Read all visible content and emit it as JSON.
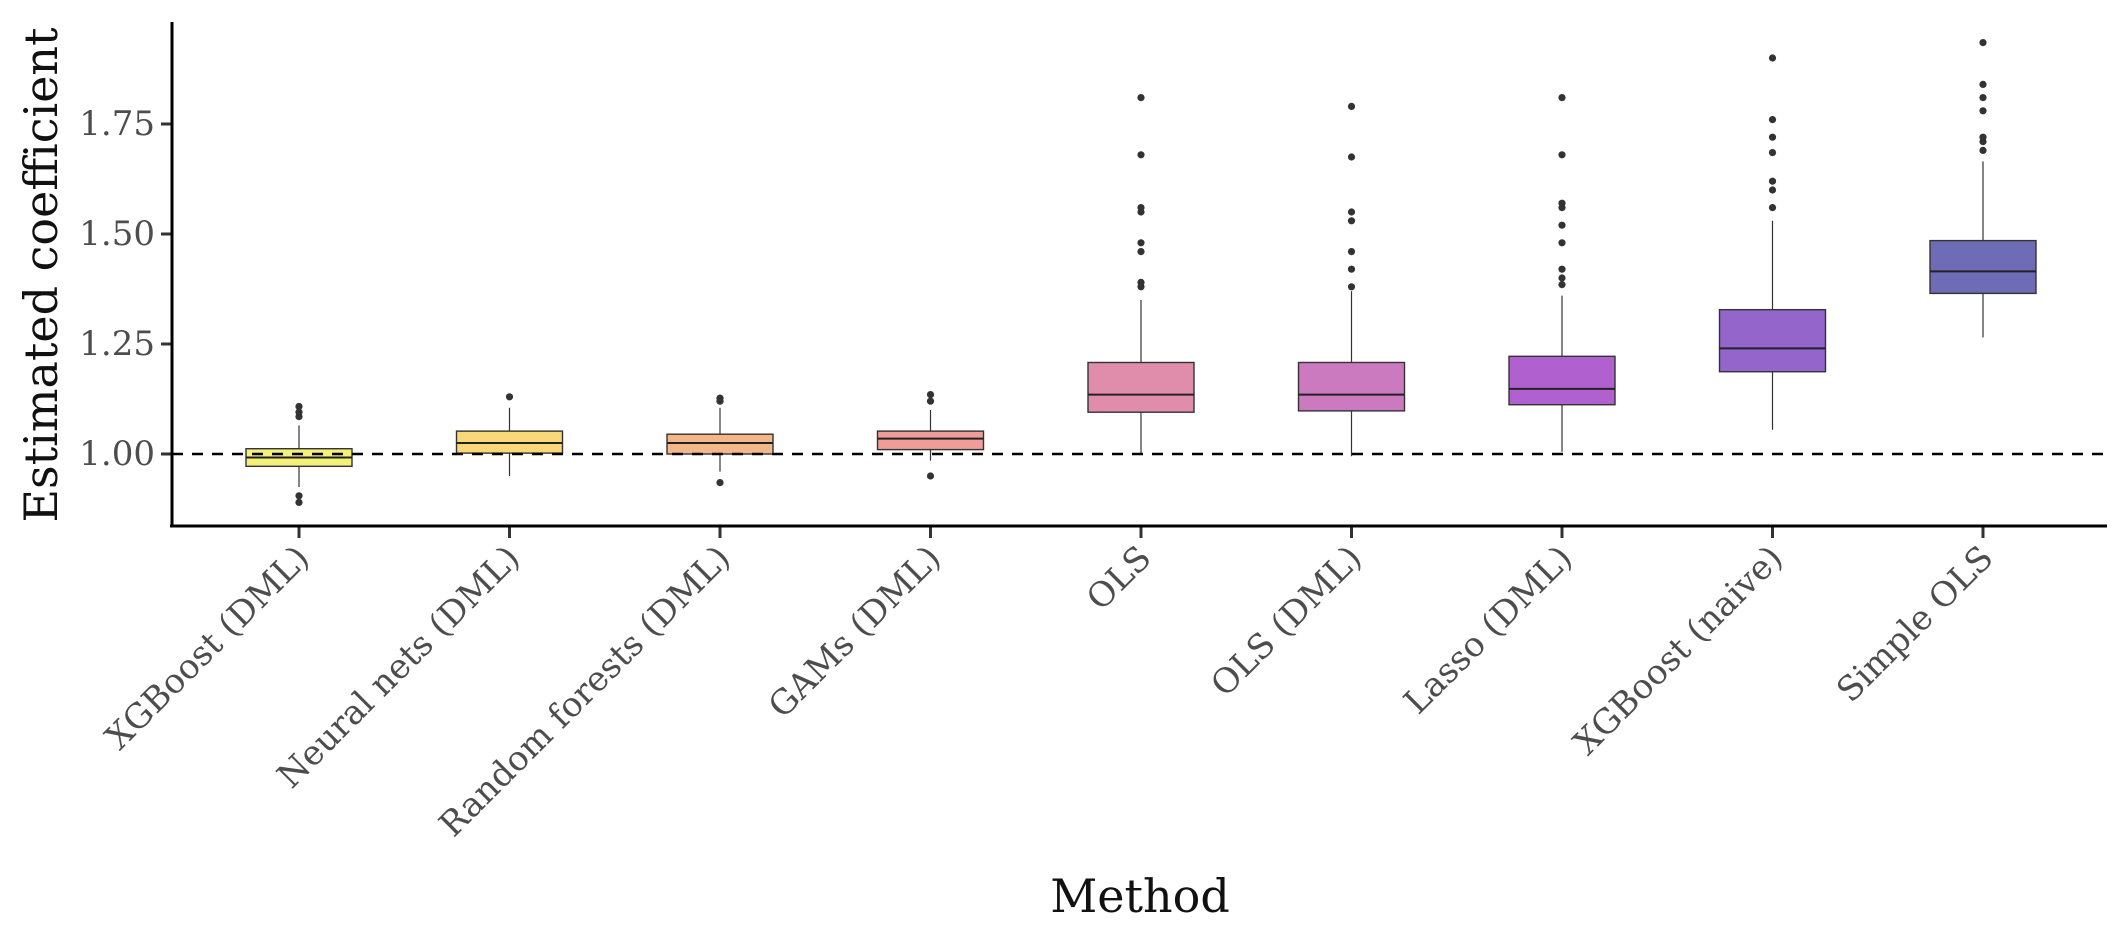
{
  "chart_data": {
    "type": "box",
    "title": "",
    "xlabel": "Method",
    "ylabel": "Estimated coefficient",
    "ylim": [
      0.84,
      1.98
    ],
    "yticks": [
      1.0,
      1.25,
      1.5,
      1.75
    ],
    "ytick_labels": [
      "1.00",
      "1.25",
      "1.50",
      "1.75"
    ],
    "reference_line": 1.0,
    "grid": false,
    "categories": [
      "XGBoost (DML)",
      "Neural nets (DML)",
      "Random forests (DML)",
      "GAMs (DML)",
      "OLS",
      "OLS (DML)",
      "Lasso (DML)",
      "XGBoost (naive)",
      "Simple OLS"
    ],
    "colors": [
      "#f4f07a",
      "#f8d879",
      "#f4b78a",
      "#ef9d98",
      "#e08cab",
      "#cb7ac0",
      "#b061cf",
      "#9465cb",
      "#6f6cb7"
    ],
    "boxes": [
      {
        "q1": 0.972,
        "median": 0.992,
        "q3": 1.012,
        "whisker_low": 0.925,
        "whisker_high": 1.065,
        "outliers": [
          1.085,
          1.095,
          1.108,
          0.905,
          0.89
        ]
      },
      {
        "q1": 1.002,
        "median": 1.025,
        "q3": 1.052,
        "whisker_low": 0.95,
        "whisker_high": 1.105,
        "outliers": [
          1.13
        ]
      },
      {
        "q1": 1.0,
        "median": 1.025,
        "q3": 1.045,
        "whisker_low": 0.96,
        "whisker_high": 1.105,
        "outliers": [
          1.12,
          1.127,
          0.935
        ]
      },
      {
        "q1": 1.01,
        "median": 1.035,
        "q3": 1.052,
        "whisker_low": 0.985,
        "whisker_high": 1.1,
        "outliers": [
          1.12,
          1.135,
          0.95
        ]
      },
      {
        "q1": 1.095,
        "median": 1.135,
        "q3": 1.208,
        "whisker_low": 1.0,
        "whisker_high": 1.35,
        "outliers": [
          1.38,
          1.39,
          1.46,
          1.48,
          1.55,
          1.56,
          1.68,
          1.81
        ]
      },
      {
        "q1": 1.098,
        "median": 1.135,
        "q3": 1.208,
        "whisker_low": 0.995,
        "whisker_high": 1.37,
        "outliers": [
          1.38,
          1.42,
          1.46,
          1.53,
          1.55,
          1.675,
          1.79
        ]
      },
      {
        "q1": 1.112,
        "median": 1.148,
        "q3": 1.222,
        "whisker_low": 1.005,
        "whisker_high": 1.36,
        "outliers": [
          1.385,
          1.4,
          1.42,
          1.48,
          1.52,
          1.56,
          1.57,
          1.68,
          1.81
        ]
      },
      {
        "q1": 1.187,
        "median": 1.24,
        "q3": 1.328,
        "whisker_low": 1.055,
        "whisker_high": 1.53,
        "outliers": [
          1.56,
          1.6,
          1.62,
          1.685,
          1.72,
          1.76,
          1.9
        ]
      },
      {
        "q1": 1.365,
        "median": 1.415,
        "q3": 1.485,
        "whisker_low": 1.265,
        "whisker_high": 1.665,
        "outliers": [
          1.69,
          1.71,
          1.72,
          1.78,
          1.81,
          1.84,
          1.935
        ]
      }
    ]
  }
}
